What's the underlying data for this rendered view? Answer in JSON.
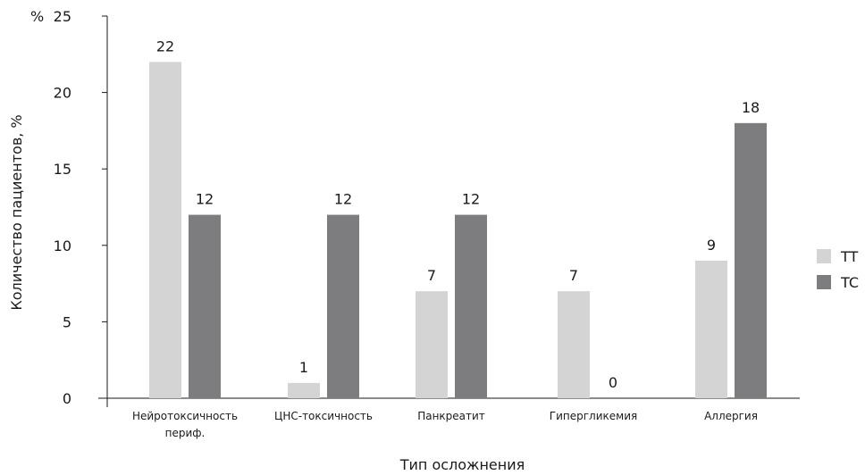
{
  "chart_data": {
    "type": "bar",
    "title": "",
    "xlabel": "Тип осложнения",
    "ylabel": "Количество пациентов, %",
    "y_unit_label": "%",
    "ylim": [
      0,
      25
    ],
    "yticks": [
      0,
      5,
      10,
      15,
      20,
      25
    ],
    "categories": [
      [
        "Нейротоксичность",
        "периф."
      ],
      [
        "ЦНС-токсичность"
      ],
      [
        "Панкреатит"
      ],
      [
        "Гипергликемия"
      ],
      [
        "Аллергия"
      ]
    ],
    "series": [
      {
        "name": "TT",
        "color": "#d4d4d4",
        "values": [
          22,
          1,
          7,
          7,
          9
        ]
      },
      {
        "name": "TC",
        "color": "#7d7d7f",
        "values": [
          12,
          12,
          12,
          0,
          18
        ]
      }
    ],
    "value_labels": [
      [
        "22",
        "1",
        "7",
        "7",
        "9"
      ],
      [
        "12",
        "12",
        "12",
        "0",
        "18"
      ]
    ],
    "grid": false,
    "legend_position": "right"
  }
}
